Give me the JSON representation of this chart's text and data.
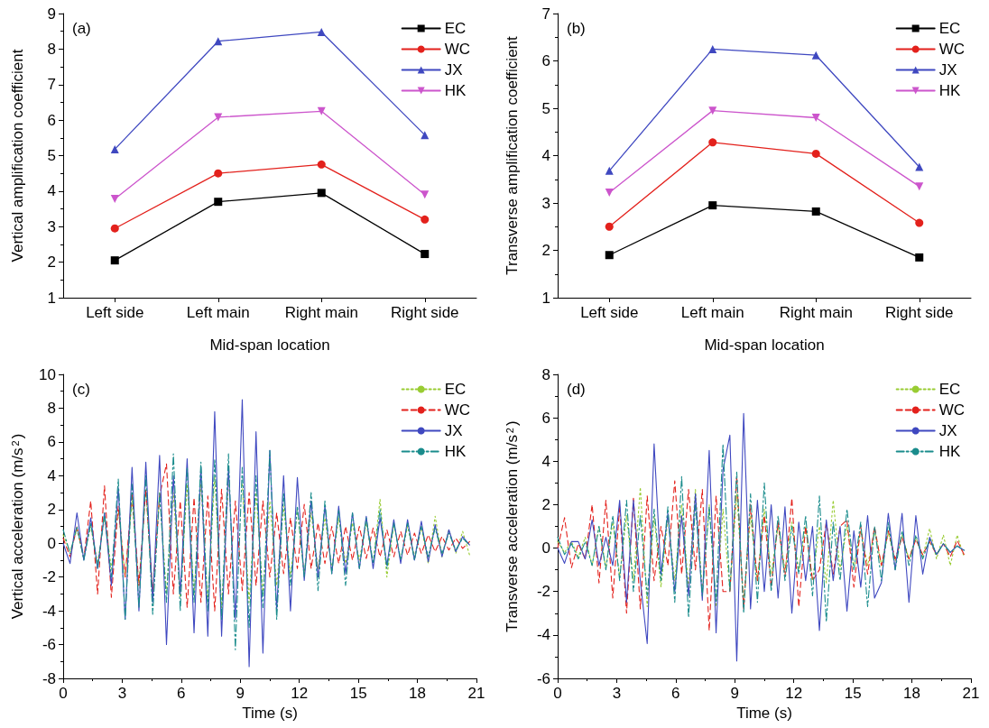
{
  "chart_data": [
    {
      "type": "line",
      "annotations": [
        "(a)"
      ],
      "xlabel": "Mid-span location",
      "ylabel": "Vertical amplification coefficient",
      "categories": [
        "Left side",
        "Left main",
        "Right main",
        "Right side"
      ],
      "ylim": [
        1,
        9
      ],
      "yticks": [
        1,
        2,
        3,
        4,
        5,
        6,
        7,
        8,
        9
      ],
      "legend": "top right",
      "series": [
        {
          "name": "EC",
          "color": "#000000",
          "marker": "square",
          "values": [
            2.05,
            3.7,
            3.95,
            2.23
          ]
        },
        {
          "name": "WC",
          "color": "#e3211c",
          "marker": "circle",
          "values": [
            2.95,
            4.5,
            4.75,
            3.2
          ]
        },
        {
          "name": "JX",
          "color": "#3f48c0",
          "marker": "triangle",
          "values": [
            5.18,
            8.22,
            8.48,
            5.58
          ]
        },
        {
          "name": "HK",
          "color": "#cc55cc",
          "marker": "triangle-down",
          "values": [
            3.78,
            6.08,
            6.25,
            3.9
          ]
        }
      ]
    },
    {
      "type": "line",
      "annotations": [
        "(b)"
      ],
      "xlabel": "Mid-span location",
      "ylabel": "Transverse amplification coefficient",
      "categories": [
        "Left side",
        "Left main",
        "Right main",
        "Right side"
      ],
      "ylim": [
        1,
        7
      ],
      "yticks": [
        1,
        2,
        3,
        4,
        5,
        6,
        7
      ],
      "legend": "top right",
      "series": [
        {
          "name": "EC",
          "color": "#000000",
          "marker": "square",
          "values": [
            1.9,
            2.95,
            2.82,
            1.85
          ]
        },
        {
          "name": "WC",
          "color": "#e3211c",
          "marker": "circle",
          "values": [
            2.5,
            4.28,
            4.04,
            2.58
          ]
        },
        {
          "name": "JX",
          "color": "#3f48c0",
          "marker": "triangle",
          "values": [
            3.68,
            6.25,
            6.12,
            3.76
          ]
        },
        {
          "name": "HK",
          "color": "#cc55cc",
          "marker": "triangle-down",
          "values": [
            3.22,
            4.95,
            4.8,
            3.35
          ]
        }
      ]
    },
    {
      "type": "line",
      "annotations": [
        "(c)"
      ],
      "xlabel": "Time (s)",
      "ylabel": "Vertical acceleration (m/s$^{2}$)",
      "xlim": [
        0,
        21
      ],
      "xticks": [
        0,
        3,
        6,
        9,
        12,
        15,
        18,
        21
      ],
      "ylim": [
        -8,
        10
      ],
      "yticks": [
        -8,
        -6,
        -4,
        -2,
        0,
        2,
        4,
        6,
        8,
        10
      ],
      "legend": "top right",
      "marker": "none",
      "x": [
        0,
        0.35,
        0.7,
        1.05,
        1.4,
        1.75,
        2.1,
        2.45,
        2.8,
        3.15,
        3.5,
        3.85,
        4.2,
        4.55,
        4.9,
        5.25,
        5.6,
        5.95,
        6.3,
        6.65,
        7,
        7.35,
        7.7,
        8.05,
        8.4,
        8.75,
        9.1,
        9.45,
        9.8,
        10.15,
        10.5,
        10.85,
        11.2,
        11.55,
        11.9,
        12.25,
        12.6,
        12.95,
        13.3,
        13.65,
        14,
        14.35,
        14.7,
        15.05,
        15.4,
        15.75,
        16.1,
        16.45,
        16.8,
        17.15,
        17.5,
        17.85,
        18.2,
        18.55,
        18.9,
        19.25,
        19.6,
        19.95,
        20.3,
        20.65
      ],
      "series": [
        {
          "name": "EC",
          "color": "#99cc33",
          "line_style": "dotted",
          "values": [
            0.5,
            -0.5,
            0.8,
            -0.8,
            1.0,
            -1.2,
            1.5,
            -1.5,
            2.0,
            -2.0,
            2.5,
            -2.5,
            3.2,
            -3.0,
            3.0,
            -3.0,
            3.0,
            -3.2,
            3.5,
            -3.0,
            3.5,
            -3.5,
            4.0,
            -3.8,
            3.5,
            null,
            3.5,
            -3.5,
            3.0,
            -3.0,
            2.5,
            -2.5,
            2.2,
            -2.0,
            2.0,
            -1.8,
            1.8,
            -1.5,
            1.5,
            -1.5,
            1.5,
            -1.2,
            1.2,
            -1.0,
            1.2,
            -1.2,
            2.6,
            -2.0,
            1.2,
            -1.0,
            1.0,
            -0.8,
            1.0,
            -1.2,
            1.6,
            -0.8,
            0.8,
            -0.6,
            0.7,
            -0.7
          ]
        },
        {
          "name": "WC",
          "color": "#e3211c",
          "line_style": "dashed",
          "values": [
            0.3,
            -0.8,
            1.0,
            -0.9,
            2.5,
            -3.0,
            3.4,
            -3.2,
            2.2,
            -2.0,
            3.0,
            -2.5,
            3.2,
            -3.0,
            2.8,
            4.7,
            -3.0,
            2.5,
            -3.8,
            2.7,
            -3.5,
            2.8,
            -4.0,
            3.2,
            -3.0,
            2.5,
            -2.8,
            3.0,
            -2.5,
            2.5,
            -2.0,
            1.8,
            -1.8,
            1.5,
            -1.5,
            2.3,
            -1.5,
            1.2,
            -1.2,
            1.0,
            -1.2,
            1.0,
            -1.0,
            1.0,
            -0.9,
            0.9,
            -0.8,
            0.8,
            -0.8,
            0.7,
            -0.7,
            0.6,
            -0.6,
            0.5,
            -0.5,
            0.4,
            -0.4,
            0.3,
            -0.3,
            0.1
          ]
        },
        {
          "name": "JX",
          "color": "#3f48c0",
          "line_style": "solid",
          "values": [
            0,
            -1.2,
            1.8,
            -1.0,
            1.5,
            -1.5,
            1.8,
            -2.5,
            3.3,
            -4.5,
            4.5,
            -4.0,
            4.8,
            -3.5,
            5.2,
            -6.0,
            4.0,
            -3.0,
            5.0,
            -5.3,
            4.5,
            -5.5,
            7.8,
            -5.5,
            4.5,
            -4.5,
            8.5,
            -7.3,
            6.6,
            -6.5,
            5.5,
            -4.0,
            4.0,
            -4.0,
            3.9,
            -2.2,
            2.5,
            -2.0,
            2.2,
            -1.8,
            2.2,
            -1.8,
            1.8,
            -1.5,
            1.6,
            -1.5,
            1.5,
            -1.3,
            1.4,
            -1.2,
            1.4,
            -1.0,
            1.3,
            -1.1,
            1.1,
            -0.8,
            0.8,
            -0.5,
            0.4,
            -0.1
          ]
        },
        {
          "name": "HK",
          "color": "#1a8c8c",
          "line_style": "dashdot",
          "values": [
            0.8,
            -0.6,
            1.0,
            -1.0,
            1.2,
            -1.5,
            1.8,
            -2.0,
            3.8,
            -4.5,
            3.5,
            -3.8,
            4.0,
            -4.2,
            3.0,
            -3.5,
            5.3,
            -4.0,
            4.5,
            -3.5,
            4.8,
            -4.0,
            5.0,
            -4.5,
            5.3,
            -6.3,
            4.5,
            -5.0,
            4.0,
            -3.8,
            5.5,
            -4.5,
            3.0,
            -2.5,
            2.2,
            -2.0,
            3.0,
            -2.8,
            2.5,
            -1.8,
            2.0,
            -2.5,
            1.8,
            -1.5,
            1.5,
            -1.2,
            2.0,
            -1.5,
            1.2,
            -1.0,
            1.2,
            -1.0,
            1.0,
            -0.8,
            0.9,
            -0.6,
            0.6,
            -0.4,
            0.3,
            -0.1
          ]
        }
      ]
    },
    {
      "type": "line",
      "annotations": [
        "(d)"
      ],
      "xlabel": "Time (s)",
      "ylabel": "Transverse acceleration (m/s$^{2}$)",
      "xlim": [
        0,
        21
      ],
      "xticks": [
        0,
        3,
        6,
        9,
        12,
        15,
        18,
        21
      ],
      "ylim": [
        -6,
        8
      ],
      "yticks": [
        -6,
        -4,
        -2,
        0,
        2,
        4,
        6,
        8
      ],
      "legend": "top right",
      "marker": "none",
      "x": [
        0,
        0.35,
        0.7,
        1.05,
        1.4,
        1.75,
        2.1,
        2.45,
        2.8,
        3.15,
        3.5,
        3.85,
        4.2,
        4.55,
        4.9,
        5.25,
        5.6,
        5.95,
        6.3,
        6.65,
        7,
        7.35,
        7.7,
        8.05,
        8.4,
        8.75,
        9.1,
        9.45,
        9.8,
        10.15,
        10.5,
        10.85,
        11.2,
        11.55,
        11.9,
        12.25,
        12.6,
        12.95,
        13.3,
        13.65,
        14,
        14.35,
        14.7,
        15.05,
        15.4,
        15.75,
        16.1,
        16.45,
        16.8,
        17.15,
        17.5,
        17.85,
        18.2,
        18.55,
        18.9,
        19.25,
        19.6,
        19.95,
        20.3,
        20.65
      ],
      "series": [
        {
          "name": "EC",
          "color": "#99cc33",
          "line_style": "dotted",
          "values": [
            0.3,
            -0.2,
            0.3,
            -0.4,
            0.5,
            -0.8,
            1.0,
            -0.9,
            1.2,
            -1.3,
            1.5,
            -1.5,
            2.8,
            -2.7,
            1.5,
            -1.8,
            1.4,
            -1.5,
            2.0,
            -1.8,
            2.7,
            -2.0,
            2.0,
            -2.7,
            1.8,
            -2.0,
            2.5,
            -2.5,
            1.5,
            -1.5,
            1.8,
            -1.2,
            1.0,
            -1.0,
            1.2,
            -1.0,
            1.0,
            -1.5,
            1.0,
            -1.6,
            2.2,
            -1.0,
            1.0,
            -0.9,
            0.8,
            -0.8,
            0.8,
            -0.8,
            0.7,
            -0.6,
            0.6,
            -0.5,
            0.5,
            -0.4,
            0.9,
            -0.5,
            0.6,
            -0.8,
            0.6,
            -0.4
          ]
        },
        {
          "name": "WC",
          "color": "#e3211c",
          "line_style": "dashed",
          "values": [
            0,
            1.4,
            -0.9,
            0.2,
            -0.5,
            2.0,
            -1.6,
            2.2,
            -2.3,
            1.9,
            -3.0,
            2.3,
            -2.8,
            2.4,
            -1.5,
            1.0,
            -0.8,
            3.1,
            -1.2,
            2.7,
            -1.0,
            2.7,
            -3.8,
            2.4,
            -2.0,
            -2.0,
            3.3,
            -2.8,
            2.0,
            -1.5,
            1.5,
            -1.8,
            1.2,
            -1.3,
            2.3,
            -2.7,
            1.0,
            -1.5,
            -1.0,
            1.2,
            -1.2,
            1.0,
            1.3,
            -1.8,
            1.0,
            -1.2,
            1.0,
            -0.8,
            0.8,
            -0.5,
            0.5,
            -0.5,
            0.4,
            -0.3,
            0.3,
            -0.3,
            0.2,
            -0.4,
            0.35,
            -0.3
          ]
        },
        {
          "name": "JX",
          "color": "#3f48c0",
          "line_style": "solid",
          "values": [
            0,
            -0.7,
            0.3,
            0.3,
            -0.5,
            1.3,
            -0.8,
            0.5,
            -0.8,
            2.2,
            -2.5,
            2.2,
            -1.5,
            -4.4,
            4.8,
            -1.2,
            1.6,
            -2.0,
            1.5,
            -2.2,
            2.5,
            -2.4,
            4.5,
            -3.9,
            3.6,
            5.2,
            -5.2,
            6.2,
            -2.8,
            2.2,
            -2.0,
            2.0,
            -2.3,
            1.9,
            -3.0,
            1.2,
            -1.5,
            1.0,
            -3.8,
            1.3,
            -1.5,
            1.0,
            -2.9,
            0.8,
            -1.8,
            1.5,
            -2.3,
            -1.6,
            1.6,
            -1.0,
            1.6,
            -2.5,
            1.5,
            -1.2,
            0.5,
            -0.3,
            0.2,
            -0.2,
            0.1,
            -0.1
          ]
        },
        {
          "name": "HK",
          "color": "#1a8c8c",
          "line_style": "dashdot",
          "values": [
            0.5,
            -0.3,
            0.2,
            -0.5,
            0.3,
            -0.8,
            1.0,
            -1.0,
            1.5,
            -1.5,
            2.2,
            -2.0,
            1.5,
            -2.2,
            1.8,
            -1.5,
            1.9,
            -2.5,
            3.3,
            -3.2,
            2.0,
            -2.2,
            1.9,
            -2.5,
            4.8,
            -2.0,
            3.5,
            -3.0,
            2.5,
            -2.5,
            3.0,
            -2.0,
            1.5,
            -1.5,
            1.0,
            -1.2,
            1.5,
            -2.2,
            2.4,
            -3.4,
            1.2,
            -1.5,
            1.8,
            -1.0,
            1.2,
            -2.7,
            1.0,
            -1.5,
            1.2,
            -1.0,
            0.8,
            -0.8,
            0.6,
            -0.5,
            0.4,
            -0.3,
            0.2,
            -0.2,
            0.1,
            -0.1
          ]
        }
      ]
    }
  ]
}
